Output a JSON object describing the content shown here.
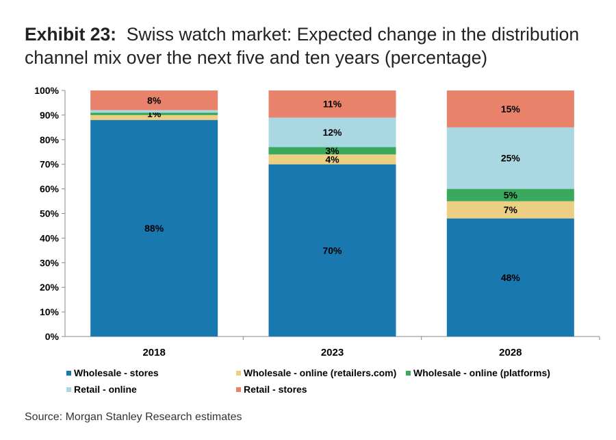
{
  "title": {
    "exhibit": "Exhibit 23:",
    "text": "Swiss watch market: Expected change in the distribution channel mix over the next five and ten years (percentage)"
  },
  "source": "Source: Morgan Stanley Research estimates",
  "chart_data": {
    "type": "bar",
    "stacked": true,
    "categories": [
      "2018",
      "2023",
      "2028"
    ],
    "ylim": [
      0,
      100
    ],
    "yticks": [
      "0%",
      "10%",
      "20%",
      "30%",
      "40%",
      "50%",
      "60%",
      "70%",
      "80%",
      "90%",
      "100%"
    ],
    "series": [
      {
        "name": "Wholesale - stores",
        "color": "#1a78b0",
        "values": [
          88,
          70,
          48
        ],
        "labels": [
          "88%",
          "70%",
          "48%"
        ]
      },
      {
        "name": "Wholesale - online (retailers.com)",
        "color": "#eccf82",
        "values": [
          2,
          4,
          7
        ],
        "labels": [
          "",
          "4%",
          "7%"
        ]
      },
      {
        "name": "Wholesale - online (platforms)",
        "color": "#3aa95e",
        "values": [
          1,
          3,
          5
        ],
        "labels": [
          "1%",
          "3%",
          "5%"
        ]
      },
      {
        "name": "Retail - online",
        "color": "#a9d8e2",
        "values": [
          1,
          12,
          25
        ],
        "labels": [
          "",
          "12%",
          "25%"
        ]
      },
      {
        "name": "Retail - stores",
        "color": "#e8826a",
        "values": [
          8,
          11,
          15
        ],
        "labels": [
          "8%",
          "11%",
          "15%"
        ]
      }
    ]
  }
}
